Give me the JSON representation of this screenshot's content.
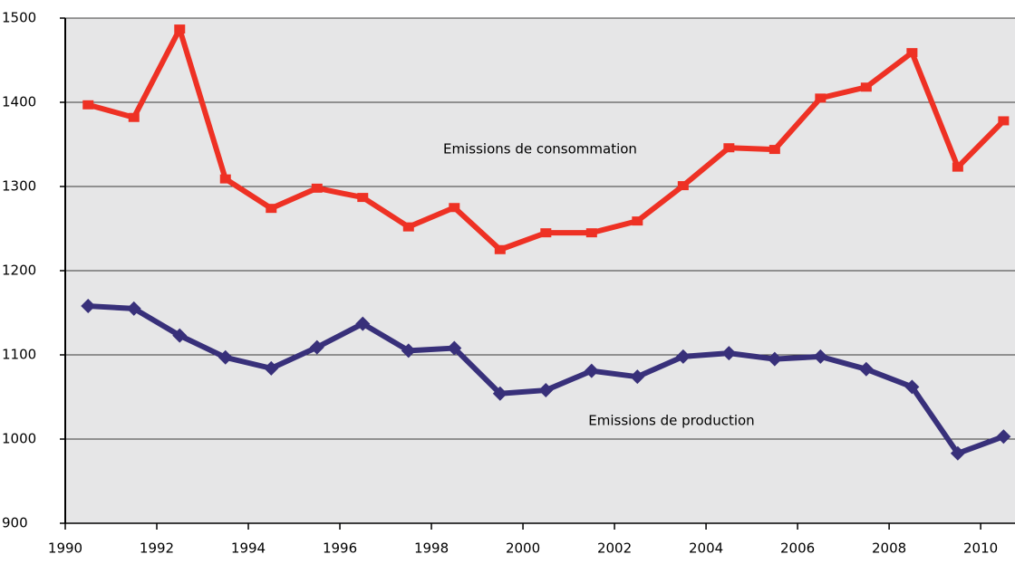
{
  "chart_data": {
    "type": "line",
    "x": [
      1990.5,
      1991.5,
      1992.5,
      1993.5,
      1994.5,
      1995.5,
      1996.5,
      1997.5,
      1998.5,
      1999.5,
      2000.5,
      2001.5,
      2002.5,
      2003.5,
      2004.5,
      2005.5,
      2006.5,
      2007.5,
      2008.5,
      2009.5,
      2010.5
    ],
    "series": [
      {
        "name": "Emissions de consommation",
        "color": "#ee3124",
        "marker": "dash",
        "values": [
          1397,
          1382,
          1487,
          1309,
          1274,
          1298,
          1287,
          1252,
          1275,
          1225,
          1245,
          1245,
          1259,
          1301,
          1346,
          1344,
          1405,
          1418,
          1459,
          1323,
          1378
        ]
      },
      {
        "name": "Emissions de production",
        "color": "#38307a",
        "marker": "diamond",
        "values": [
          1158,
          1155,
          1123,
          1097,
          1084,
          1109,
          1137,
          1105,
          1108,
          1054,
          1058,
          1081,
          1074,
          1098,
          1102,
          1095,
          1098,
          1083,
          1062,
          983,
          1003
        ]
      }
    ],
    "xlim": [
      1990,
      2010.75
    ],
    "xticks": [
      1990,
      1992,
      1994,
      1996,
      1998,
      2000,
      2002,
      2004,
      2006,
      2008,
      2010
    ],
    "ylim": [
      900,
      1500
    ],
    "yticks": [
      900,
      1000,
      1100,
      1200,
      1300,
      1400,
      1500
    ],
    "grid": true
  }
}
